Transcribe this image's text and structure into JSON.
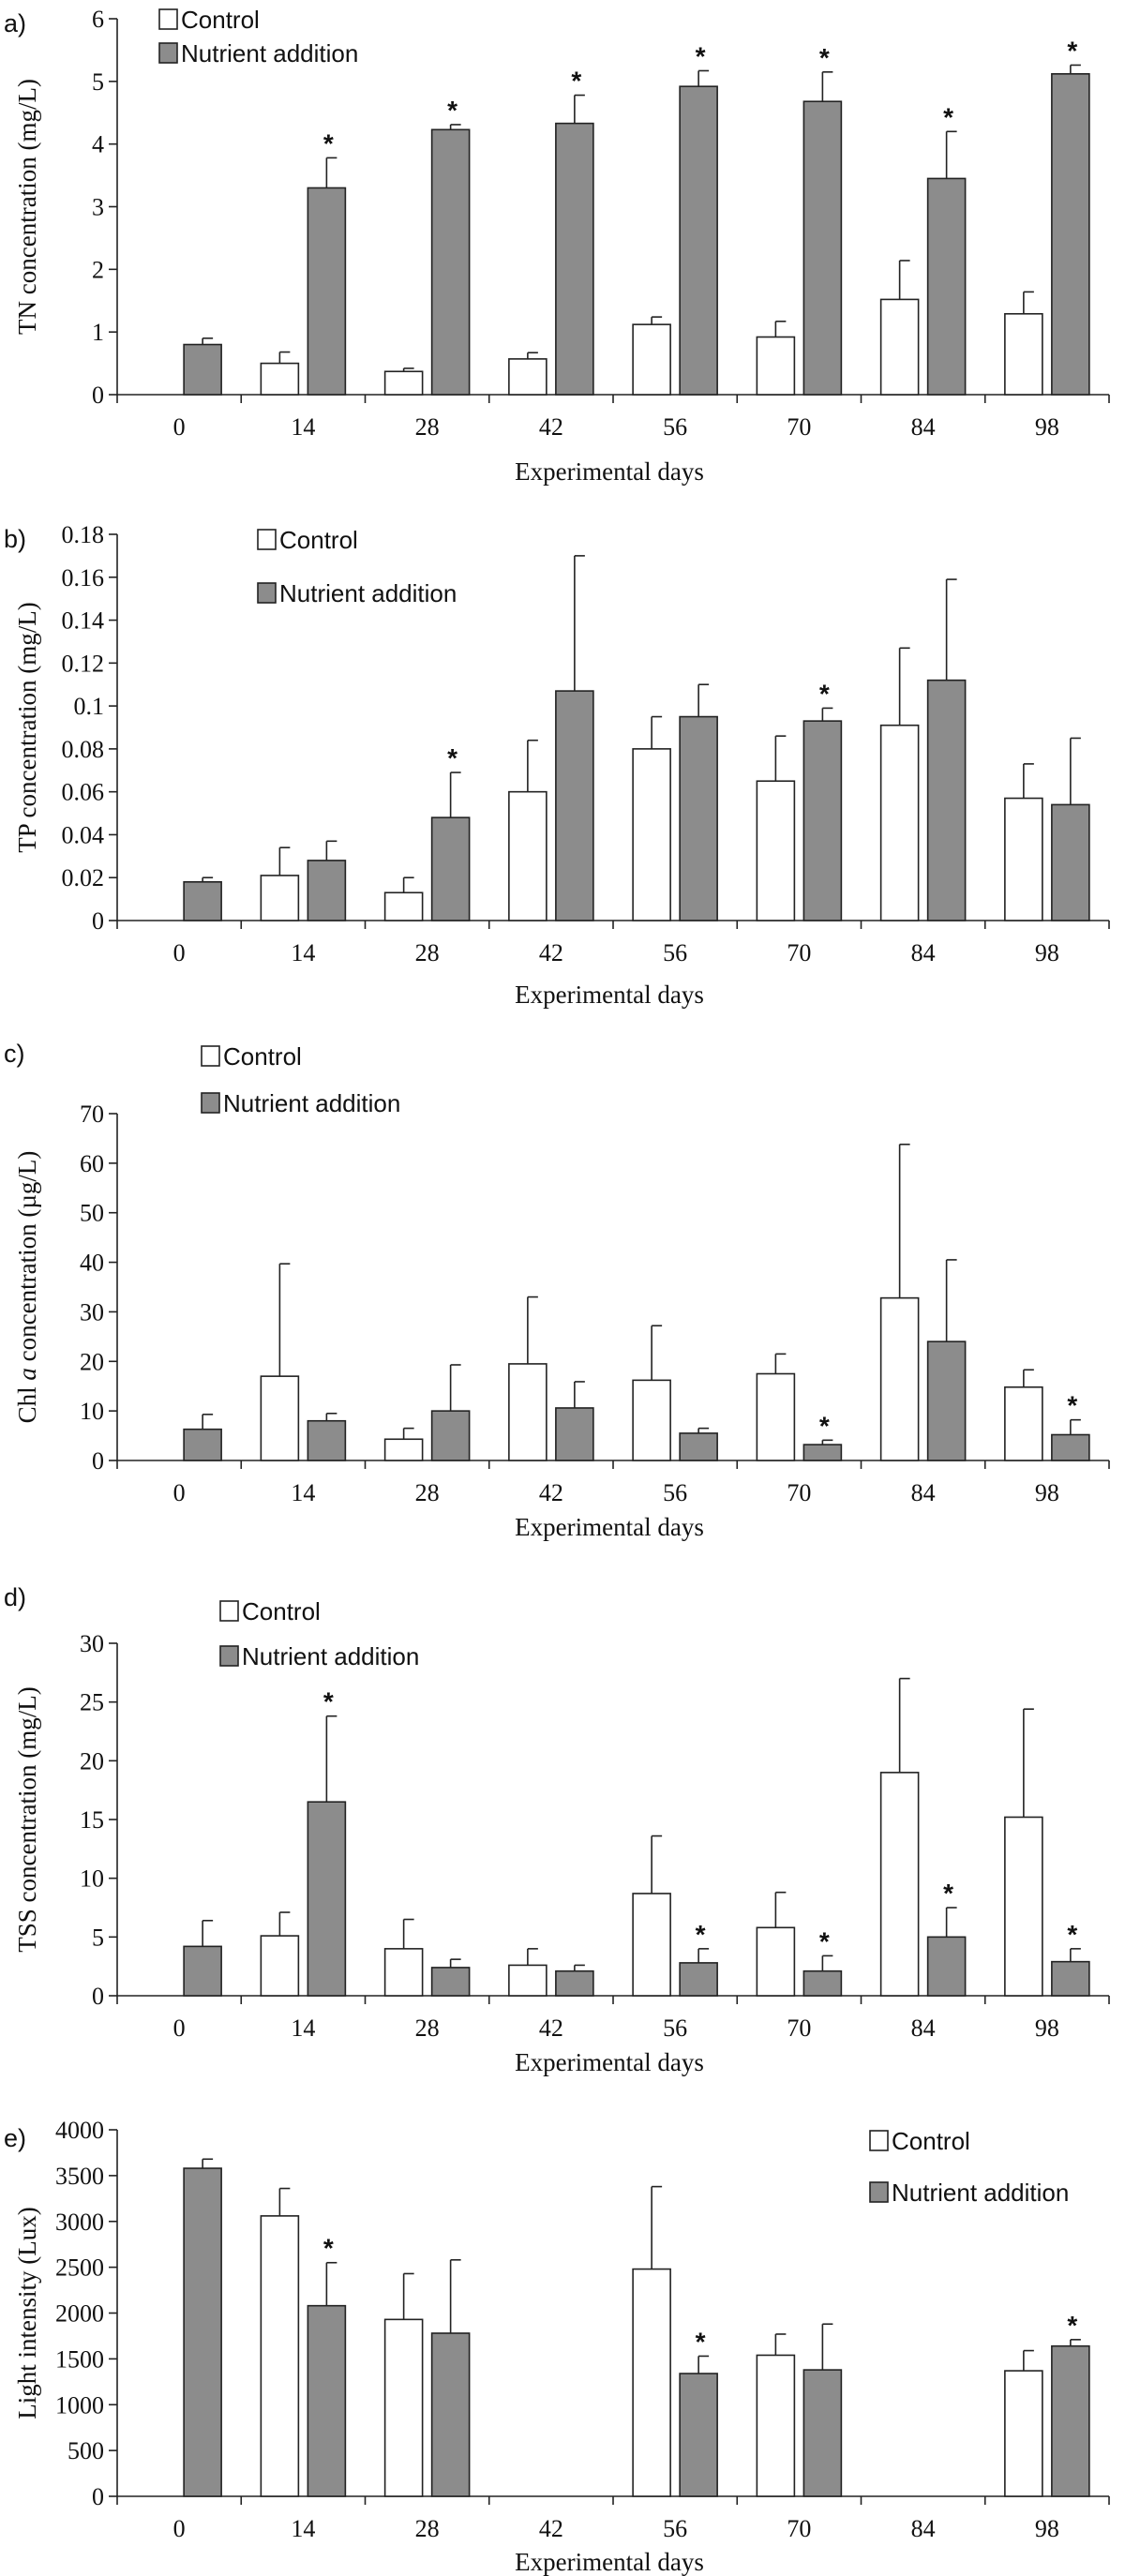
{
  "colors": {
    "control": "#ffffff",
    "nutrient": "#8c8c8c",
    "stroke": "#222222"
  },
  "chart_data": [
    {
      "type": "bar",
      "panel_label": "a)",
      "categories": [
        "0",
        "14",
        "28",
        "42",
        "56",
        "70",
        "84",
        "98"
      ],
      "xlabel": "Experimental days",
      "ylabel": "TN concentration (mg/L)",
      "ylim": [
        0,
        6
      ],
      "yticks": [
        0,
        1,
        2,
        3,
        4,
        5,
        6
      ],
      "legend": [
        "Control",
        "Nutrient addition"
      ],
      "legend_position": "top-left",
      "series": [
        {
          "name": "Control",
          "values": [
            null,
            0.5,
            0.37,
            0.57,
            1.12,
            0.92,
            1.52,
            1.29
          ],
          "errors": [
            null,
            0.18,
            0.05,
            0.1,
            0.12,
            0.25,
            0.62,
            0.35
          ],
          "significant": [
            false,
            false,
            false,
            false,
            false,
            false,
            false,
            false
          ]
        },
        {
          "name": "Nutrient addition",
          "values": [
            0.8,
            3.3,
            4.23,
            4.33,
            4.92,
            4.68,
            3.45,
            5.12
          ],
          "errors": [
            0.1,
            0.48,
            0.08,
            0.45,
            0.25,
            0.47,
            0.75,
            0.14
          ],
          "significant": [
            false,
            true,
            true,
            true,
            true,
            true,
            true,
            true
          ]
        }
      ]
    },
    {
      "type": "bar",
      "panel_label": "b)",
      "categories": [
        "0",
        "14",
        "28",
        "42",
        "56",
        "70",
        "84",
        "98"
      ],
      "xlabel": "Experimental days",
      "ylabel": "TP concentration (mg/L)",
      "ylim": [
        0,
        0.18
      ],
      "yticks": [
        "0",
        "0.02",
        "0.04",
        "0.06",
        "0.08",
        "0.1",
        "0.12",
        "0.14",
        "0.16",
        "0.18"
      ],
      "legend": [
        "Control",
        "Nutrient addition"
      ],
      "legend_position": "top-left",
      "series": [
        {
          "name": "Control",
          "values": [
            null,
            0.021,
            0.013,
            0.06,
            0.08,
            0.065,
            0.091,
            0.057
          ],
          "errors": [
            null,
            0.013,
            0.007,
            0.024,
            0.015,
            0.021,
            0.036,
            0.016
          ],
          "significant": [
            false,
            false,
            false,
            false,
            false,
            false,
            false,
            false
          ]
        },
        {
          "name": "Nutrient addition",
          "values": [
            0.018,
            0.028,
            0.048,
            0.107,
            0.095,
            0.093,
            0.112,
            0.054
          ],
          "errors": [
            0.002,
            0.009,
            0.021,
            0.063,
            0.015,
            0.006,
            0.047,
            0.031
          ],
          "significant": [
            false,
            false,
            true,
            false,
            false,
            true,
            false,
            false
          ]
        }
      ]
    },
    {
      "type": "bar",
      "panel_label": "c)",
      "categories": [
        "0",
        "14",
        "28",
        "42",
        "56",
        "70",
        "84",
        "98"
      ],
      "xlabel": "Experimental days",
      "ylabel": "Chl a concentration (µg/L)",
      "ylabel_parts": [
        "Chl ",
        "a",
        " concentration (µg/L)"
      ],
      "ylim": [
        0,
        70
      ],
      "yticks": [
        0,
        10,
        20,
        30,
        40,
        50,
        60,
        70
      ],
      "legend": [
        "Control",
        "Nutrient addition"
      ],
      "legend_position": "top-left",
      "series": [
        {
          "name": "Control",
          "values": [
            null,
            17.0,
            4.3,
            19.5,
            16.2,
            17.5,
            32.8,
            14.8
          ],
          "errors": [
            null,
            22.7,
            2.2,
            13.5,
            11.0,
            4.0,
            31.0,
            3.5
          ],
          "significant": [
            false,
            false,
            false,
            false,
            false,
            false,
            false,
            false
          ]
        },
        {
          "name": "Nutrient addition",
          "values": [
            6.3,
            8.0,
            10.0,
            10.6,
            5.5,
            3.2,
            24.0,
            5.2
          ],
          "errors": [
            3.0,
            1.5,
            9.3,
            5.3,
            1.0,
            0.9,
            16.5,
            3.0
          ],
          "significant": [
            false,
            false,
            false,
            false,
            false,
            true,
            false,
            true
          ]
        }
      ]
    },
    {
      "type": "bar",
      "panel_label": "d)",
      "categories": [
        "0",
        "14",
        "28",
        "42",
        "56",
        "70",
        "84",
        "98"
      ],
      "xlabel": "Experimental days",
      "ylabel": "TSS concentration (mg/L)",
      "ylim": [
        0,
        30
      ],
      "yticks": [
        0,
        5,
        10,
        15,
        20,
        25,
        30
      ],
      "legend": [
        "Control",
        "Nutrient addition"
      ],
      "legend_position": "top-left",
      "series": [
        {
          "name": "Control",
          "values": [
            null,
            5.1,
            4.0,
            2.6,
            8.7,
            5.8,
            19.0,
            15.2
          ],
          "errors": [
            null,
            2.0,
            2.5,
            1.4,
            4.9,
            3.0,
            8.0,
            9.2
          ],
          "significant": [
            false,
            false,
            false,
            false,
            false,
            false,
            false,
            false
          ]
        },
        {
          "name": "Nutrient addition",
          "values": [
            4.2,
            16.5,
            2.4,
            2.1,
            2.8,
            2.1,
            5.0,
            2.9
          ],
          "errors": [
            2.2,
            7.3,
            0.7,
            0.5,
            1.2,
            1.3,
            2.5,
            1.1
          ],
          "significant": [
            false,
            true,
            false,
            false,
            true,
            true,
            true,
            true
          ]
        }
      ]
    },
    {
      "type": "bar",
      "panel_label": "e)",
      "categories": [
        "0",
        "14",
        "28",
        "42",
        "56",
        "70",
        "84",
        "98"
      ],
      "xlabel": "Experimental days",
      "ylabel": "Light intensity (Lux)",
      "ylim": [
        0,
        4000
      ],
      "yticks": [
        0,
        500,
        1000,
        1500,
        2000,
        2500,
        3000,
        3500,
        4000
      ],
      "legend": [
        "Control",
        "Nutrient addition"
      ],
      "legend_position": "top-right",
      "series": [
        {
          "name": "Control",
          "values": [
            null,
            3060,
            1930,
            null,
            2480,
            1540,
            null,
            1370
          ],
          "errors": [
            null,
            300,
            500,
            null,
            900,
            230,
            null,
            220
          ],
          "significant": [
            false,
            false,
            false,
            false,
            false,
            false,
            false,
            false
          ]
        },
        {
          "name": "Nutrient addition",
          "values": [
            3580,
            2080,
            1780,
            null,
            1340,
            1380,
            null,
            1640
          ],
          "errors": [
            100,
            470,
            800,
            null,
            190,
            500,
            null,
            70
          ],
          "significant": [
            false,
            true,
            false,
            false,
            true,
            false,
            false,
            true
          ]
        }
      ]
    }
  ]
}
